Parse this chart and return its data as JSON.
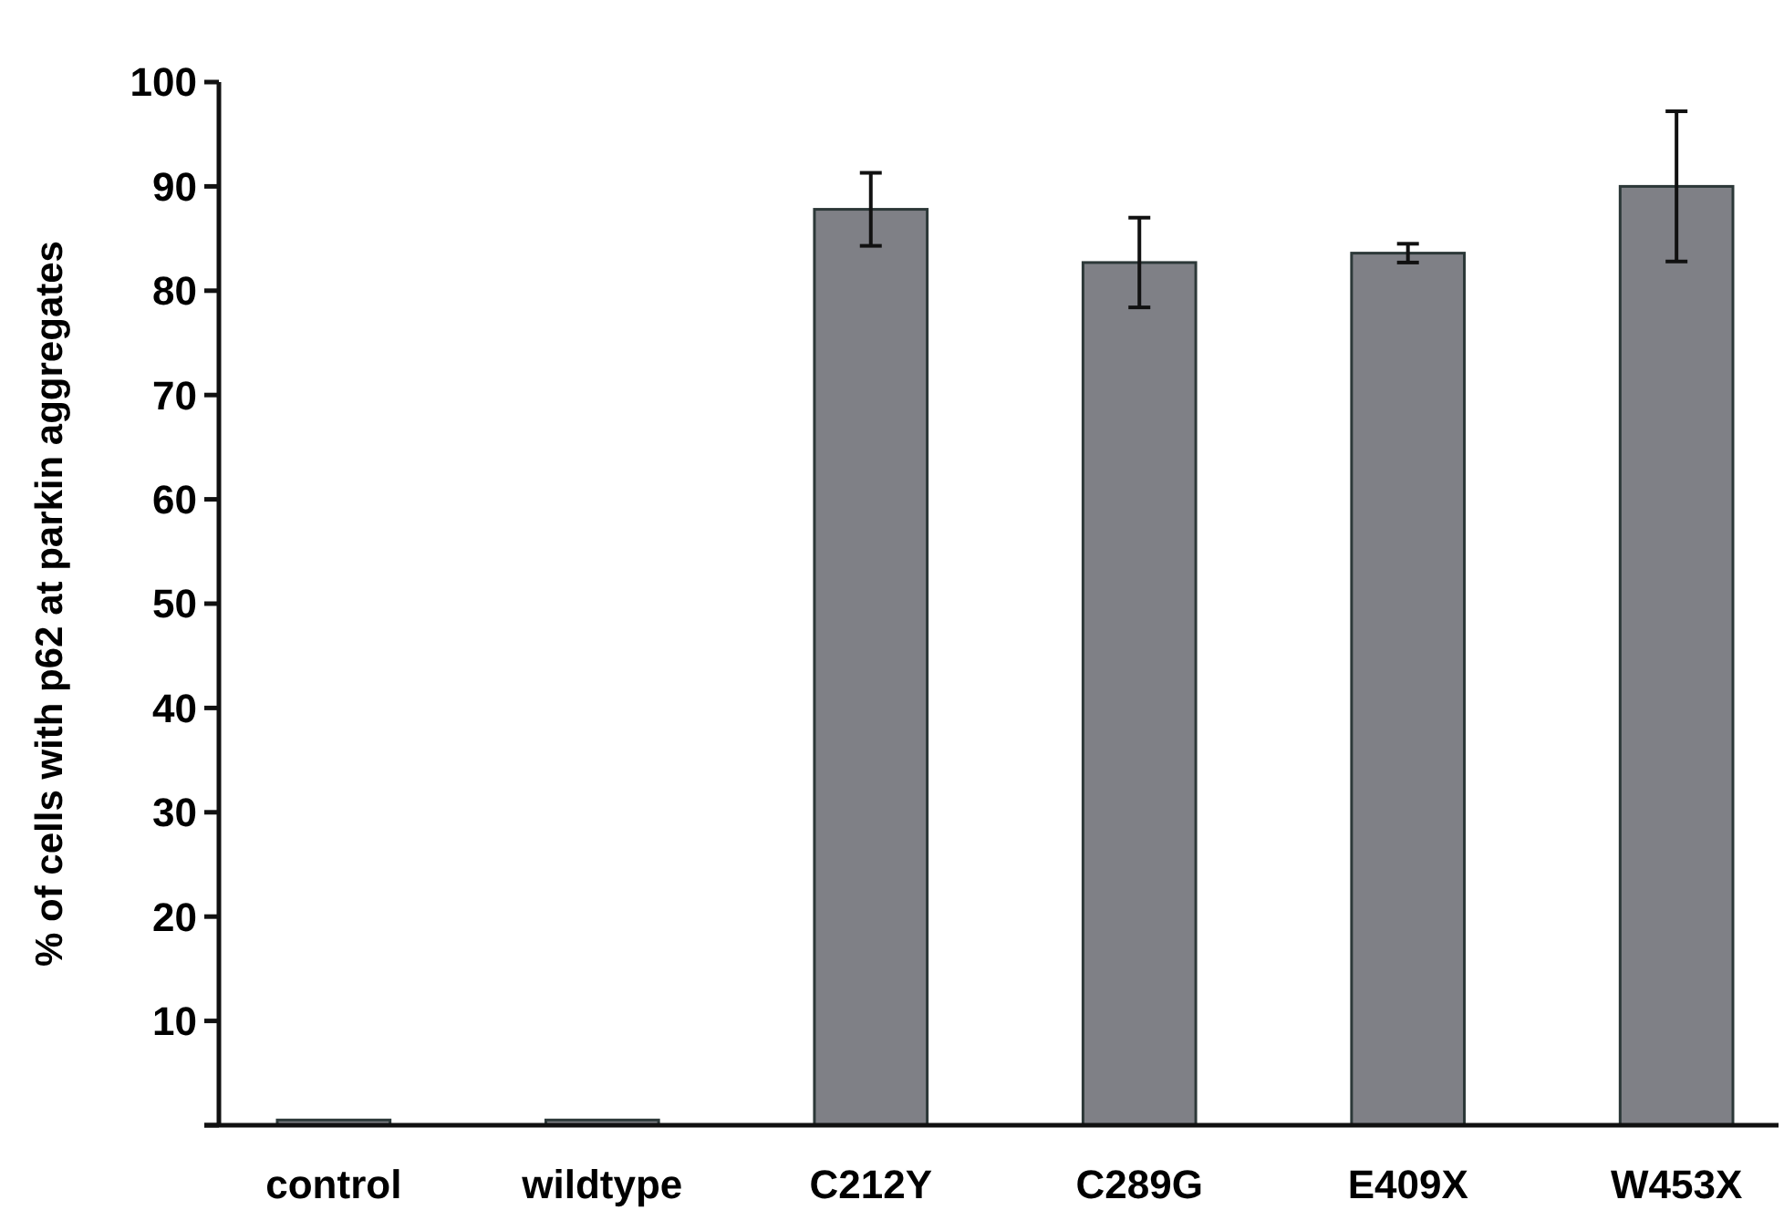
{
  "chart_data": {
    "type": "bar",
    "ylabel": "% of cells with p62 at parkin aggregates",
    "categories": [
      "control",
      "wildtype",
      "C212Y",
      "C289G",
      "E409X",
      "W453X"
    ],
    "values": [
      0.5,
      0.5,
      87.8,
      82.7,
      83.6,
      90.0
    ],
    "errors": [
      null,
      null,
      3.5,
      4.3,
      0.9,
      7.2
    ],
    "color": "#7f8086",
    "ylim": [
      0,
      100
    ],
    "yticks": [
      {
        "value": 0,
        "label": null
      },
      10,
      20,
      30,
      40,
      50,
      60,
      70,
      80,
      90,
      100
    ],
    "grid": false
  }
}
